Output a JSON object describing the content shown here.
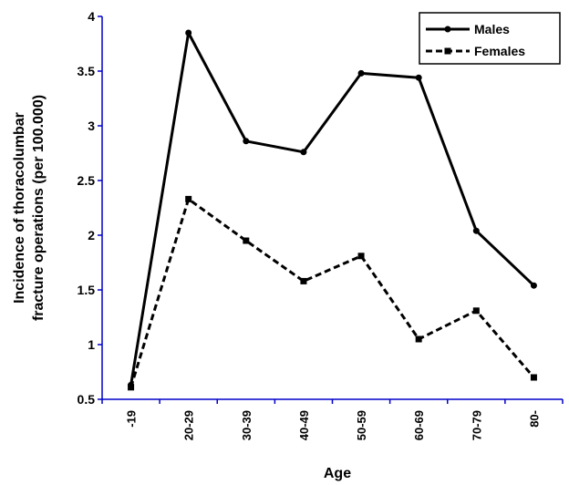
{
  "chart_data": {
    "type": "line",
    "categories": [
      "-19",
      "20-29",
      "30-39",
      "40-49",
      "50-59",
      "60-69",
      "70-79",
      "80-"
    ],
    "series": [
      {
        "name": "Males",
        "values": [
          0.63,
          3.85,
          2.86,
          2.76,
          3.48,
          3.44,
          2.04,
          1.54
        ],
        "style": "solid",
        "marker": "circle"
      },
      {
        "name": "Females",
        "values": [
          0.61,
          2.33,
          1.95,
          1.58,
          1.81,
          1.05,
          1.31,
          0.7
        ],
        "style": "dashed",
        "marker": "square"
      }
    ],
    "xlabel": "Age",
    "ylabel_lines": [
      "Incidence of thoracolumbar",
      "fracture operations (per 100.000)"
    ],
    "ylim": [
      0.5,
      4
    ],
    "yticks": [
      "0.5",
      "1",
      "1.5",
      "2",
      "2.5",
      "3",
      "3.5",
      "4"
    ],
    "grid": false,
    "legend_position": "top-right",
    "line_color": "#000000"
  }
}
